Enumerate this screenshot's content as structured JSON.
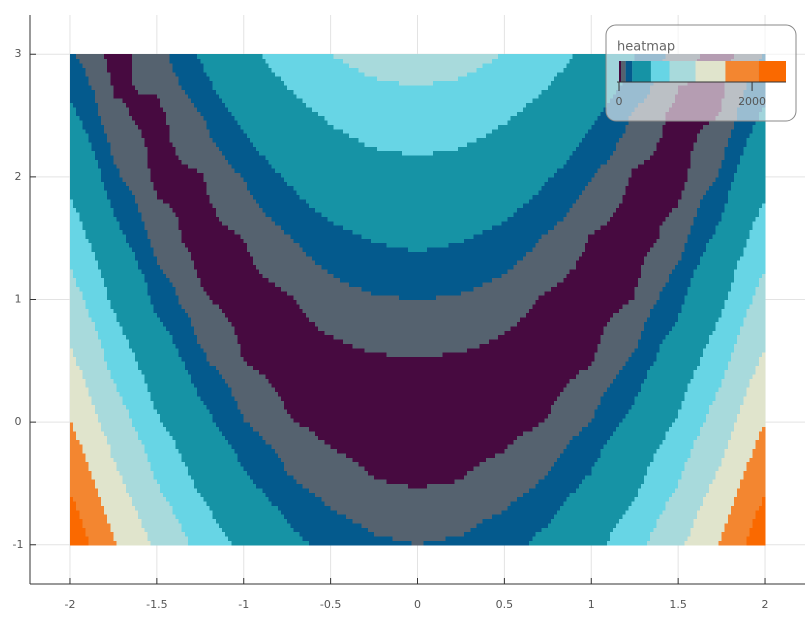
{
  "chart_data": {
    "type": "contour",
    "name": "heatmap",
    "x": [
      -2,
      -1.75,
      -1.5,
      -1.25,
      -1,
      -0.75,
      -0.5,
      -0.25,
      0,
      0.25,
      0.5,
      0.75,
      1,
      1.25,
      1.5,
      1.75,
      2
    ],
    "y": [
      -1,
      -0.5,
      0,
      0.5,
      1,
      1.5,
      2,
      2.5,
      3
    ],
    "z": [
      [
        2509,
        1658,
        1063,
        662,
        404,
        247,
        159,
        114,
        101,
        113,
        157,
        244,
        400,
        657,
        1057,
        1651,
        2501
      ],
      [
        2034,
        1277,
        763,
        430,
        229,
        116,
        59,
        33,
        26,
        32,
        57,
        113,
        225,
        425,
        757,
        1270,
        2026
      ],
      [
        1609,
        945,
        513,
        249,
        104,
        35,
        9,
        2,
        1,
        1,
        7,
        32,
        100,
        244,
        507,
        938,
        1601
      ],
      [
        1234,
        664,
        313,
        118,
        29,
        3,
        9,
        21,
        26,
        20,
        7,
        0,
        25,
        113,
        307,
        657,
        1226
      ],
      [
        909,
        433,
        163,
        37,
        4,
        22,
        59,
        89,
        101,
        88,
        57,
        19,
        0,
        32,
        157,
        426,
        901
      ],
      [
        634,
        252,
        63,
        5,
        29,
        91,
        159,
        208,
        226,
        207,
        157,
        88,
        25,
        0,
        57,
        245,
        626
      ],
      [
        409,
        120,
        13,
        24,
        104,
        210,
        309,
        377,
        401,
        376,
        307,
        207,
        100,
        19,
        7,
        113,
        401
      ],
      [
        234,
        39,
        13,
        93,
        229,
        378,
        508,
        596,
        626,
        595,
        506,
        375,
        225,
        88,
        7,
        32,
        226
      ],
      [
        109,
        8,
        63,
        212,
        404,
        597,
        759,
        864,
        901,
        863,
        757,
        594,
        400,
        207,
        57,
        1,
        101
      ]
    ],
    "levels": [
      0,
      30,
      100,
      200,
      480,
      760,
      1150,
      1600,
      2100,
      2510
    ],
    "colors": [
      "#470a40",
      "#55626f",
      "#045a8d",
      "#1693a5",
      "#67d5e5",
      "#a8dadc",
      "#e0e4cc",
      "#f38630",
      "#fa6900"
    ],
    "xlim": [
      -2.23,
      2.23
    ],
    "ylim": [
      -1.32,
      3.32
    ],
    "xticks": [
      -2,
      -1.5,
      -1,
      -0.5,
      0,
      0.5,
      1,
      1.5,
      2
    ],
    "yticks": [
      -1,
      0,
      1,
      2,
      3
    ],
    "colorbar_ticks": [
      0,
      2000
    ],
    "grid": true
  }
}
